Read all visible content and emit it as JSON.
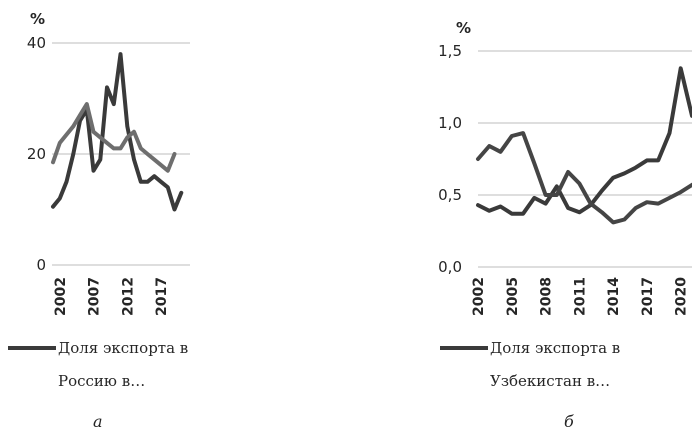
{
  "chart_data": [
    {
      "type": "line",
      "unit": "%",
      "ylim": [
        0,
        40
      ],
      "y_ticks": [
        "0",
        "20",
        "40"
      ],
      "x_ticks": [
        "2002",
        "2007",
        "2012",
        "2017"
      ],
      "x": [
        2001,
        2002,
        2003,
        2004,
        2005,
        2006,
        2007,
        2008,
        2009,
        2010,
        2011,
        2012,
        2013,
        2014,
        2015,
        2016,
        2017,
        2018,
        2019,
        2020,
        2021
      ],
      "series": [
        {
          "name": "Доля экспорта в Россию в…",
          "color": "#3a3a3a",
          "values": [
            10.5,
            12,
            15,
            20,
            26,
            28,
            17,
            19,
            32,
            29,
            38,
            25,
            19,
            15,
            15,
            16,
            15,
            14,
            10,
            13,
            null
          ]
        },
        {
          "name": "",
          "color": "#6e6e6e",
          "values": [
            18.5,
            22,
            23.5,
            25,
            27,
            29,
            24,
            23,
            22,
            21,
            21,
            23,
            24,
            21,
            20,
            19,
            18,
            17,
            20,
            null,
            null
          ]
        }
      ],
      "legend": "bottom",
      "grid": true,
      "caption": "а"
    },
    {
      "type": "line",
      "unit": "%",
      "ylim": [
        0,
        1.5
      ],
      "y_ticks": [
        "0,0",
        "0,5",
        "1,0",
        "1,5"
      ],
      "x_ticks": [
        "2002",
        "2005",
        "2008",
        "2011",
        "2014",
        "2017",
        "2020"
      ],
      "x": [
        2002,
        2003,
        2004,
        2005,
        2006,
        2007,
        2008,
        2009,
        2010,
        2011,
        2012,
        2013,
        2014,
        2015,
        2016,
        2017,
        2018,
        2019,
        2020,
        2021
      ],
      "series": [
        {
          "name": "Доля экспорта в Узбекистан в…",
          "color": "#3a3a3a",
          "values": [
            0.43,
            0.39,
            0.42,
            0.37,
            0.37,
            0.48,
            0.44,
            0.56,
            0.41,
            0.38,
            0.43,
            0.53,
            0.62,
            0.65,
            0.69,
            0.74,
            0.74,
            0.93,
            1.38,
            1.05
          ]
        },
        {
          "name": "",
          "color": "#454545",
          "values": [
            0.75,
            0.84,
            0.8,
            0.91,
            0.93,
            0.72,
            0.5,
            0.5,
            0.66,
            0.58,
            0.44,
            0.38,
            0.31,
            0.33,
            0.41,
            0.45,
            0.44,
            0.48,
            0.52,
            0.57
          ]
        }
      ],
      "legend": "bottom",
      "grid": true,
      "caption": "б"
    }
  ],
  "legends": [
    {
      "line1": "Доля экспорта в",
      "line2": "Россию в…"
    },
    {
      "line1": "Доля экспорта в",
      "line2": "Узбекистан в…"
    }
  ],
  "captions": [
    "а",
    "б"
  ]
}
